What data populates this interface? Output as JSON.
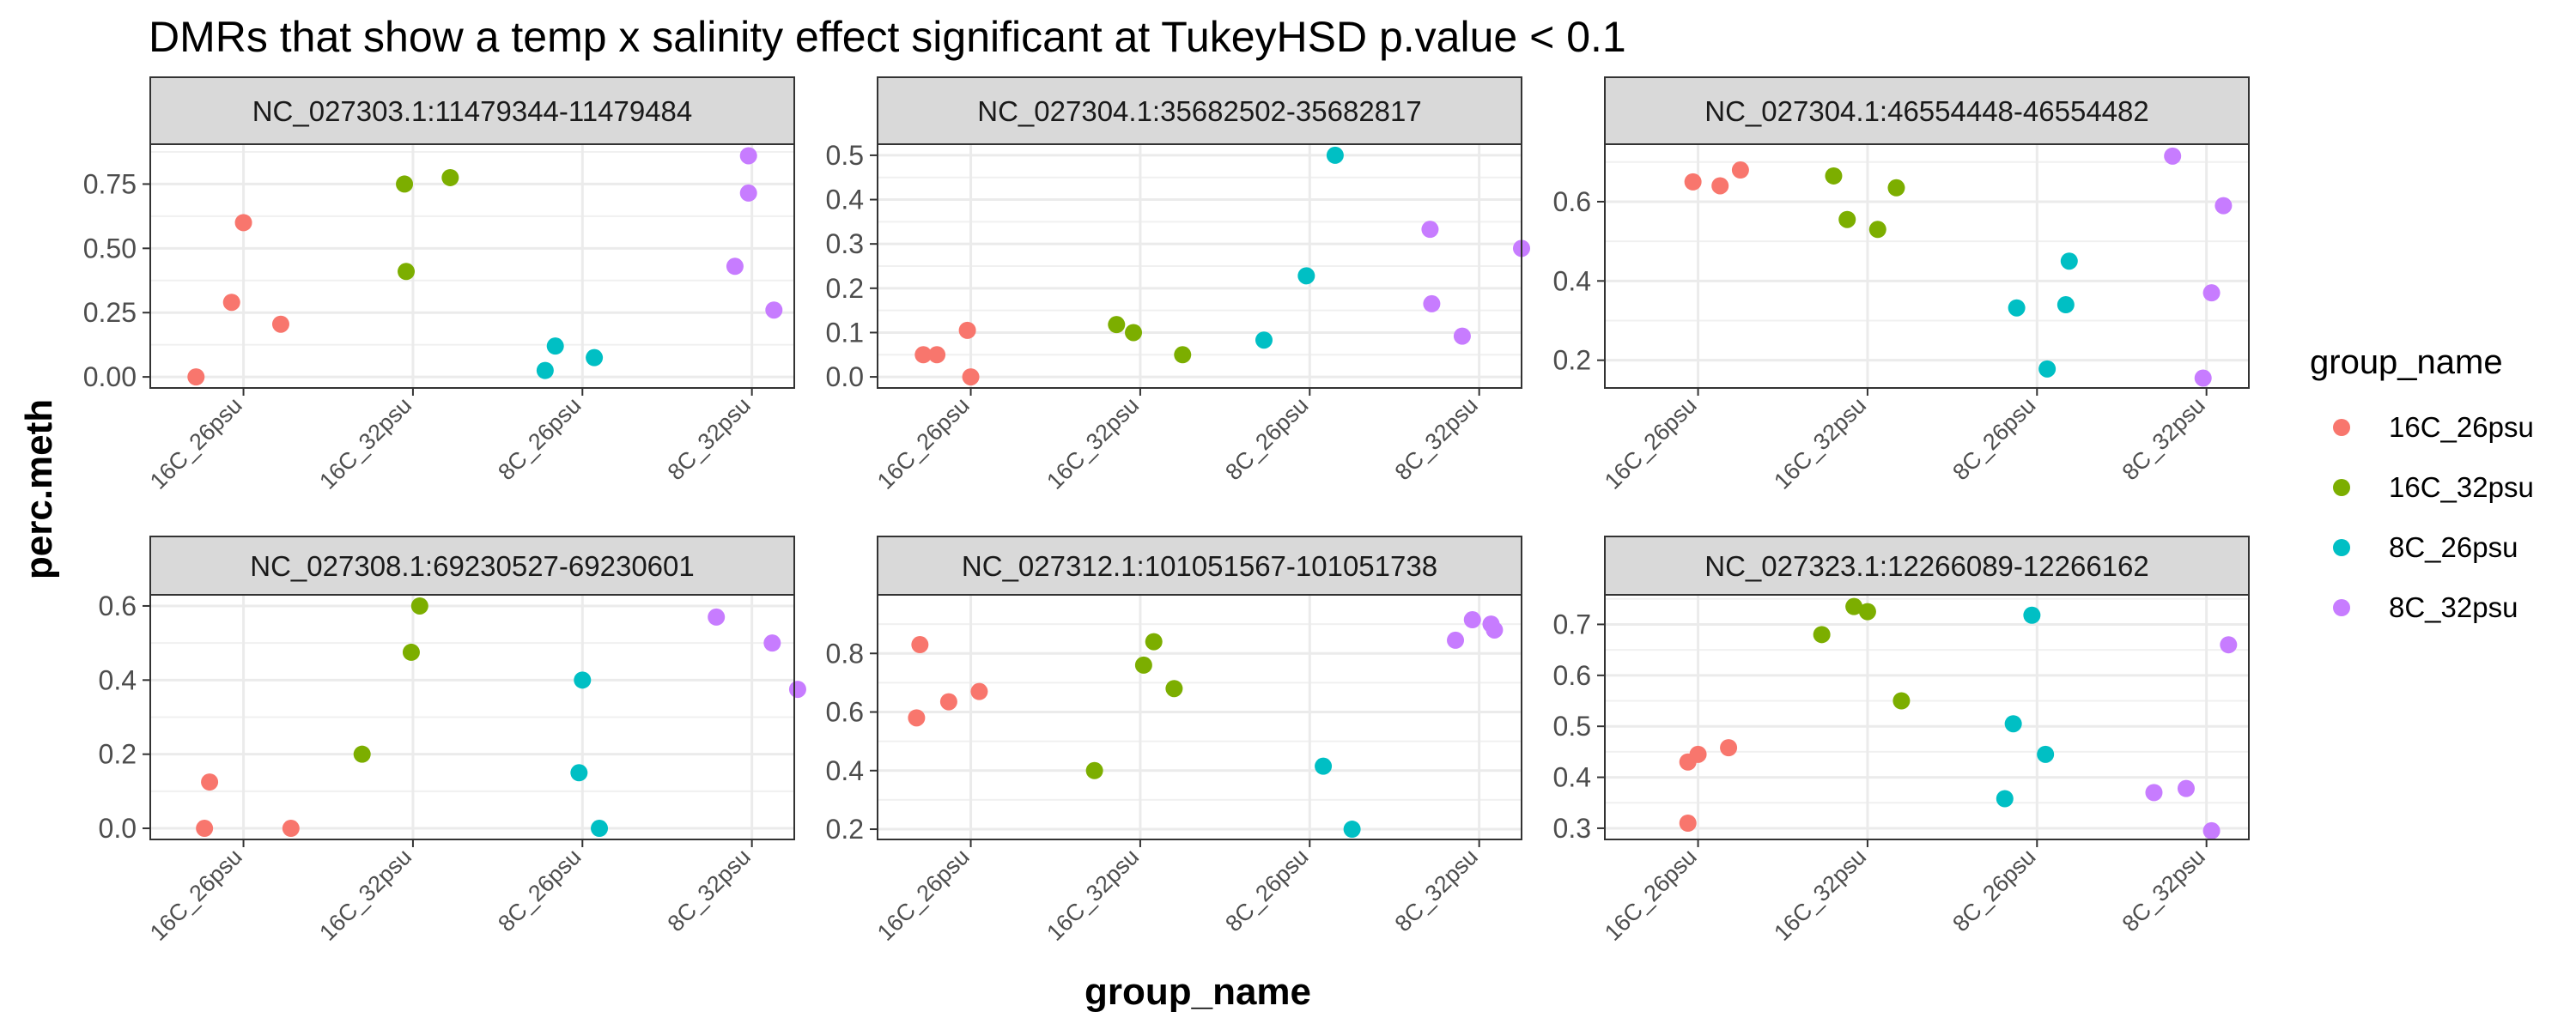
{
  "chart_data": {
    "type": "scatter",
    "title": "DMRs that show a temp x salinity effect significant at TukeyHSD p.value < 0.1",
    "xlabel": "group_name",
    "ylabel": "perc.meth",
    "categories": [
      "16C_26psu",
      "16C_32psu",
      "8C_26psu",
      "8C_32psu"
    ],
    "legend": {
      "title": "group_name",
      "position": "right",
      "entries": [
        {
          "name": "16C_26psu",
          "color": "#F8766D"
        },
        {
          "name": "16C_32psu",
          "color": "#7CAE00"
        },
        {
          "name": "8C_26psu",
          "color": "#00BFC4"
        },
        {
          "name": "8C_32psu",
          "color": "#C77CFF"
        }
      ]
    },
    "panels": [
      {
        "title": "NC_027303.1:11479344-11479484",
        "yticks": [
          "0.00",
          "0.25",
          "0.50",
          "0.75"
        ],
        "ytick_values": [
          0,
          0.25,
          0.5,
          0.75
        ],
        "ylim": [
          -0.043,
          0.905
        ],
        "points": [
          {
            "g": 0,
            "j": -0.28,
            "y": 0.0
          },
          {
            "g": 0,
            "j": -0.07,
            "y": 0.29
          },
          {
            "g": 0,
            "j": 0.0,
            "y": 0.6
          },
          {
            "g": 0,
            "j": 0.22,
            "y": 0.205
          },
          {
            "g": 1,
            "j": -0.04,
            "y": 0.41
          },
          {
            "g": 1,
            "j": -0.05,
            "y": 0.75
          },
          {
            "g": 1,
            "j": 0.22,
            "y": 0.775
          },
          {
            "g": 2,
            "j": -0.22,
            "y": 0.025
          },
          {
            "g": 2,
            "j": -0.16,
            "y": 0.12
          },
          {
            "g": 2,
            "j": 0.07,
            "y": 0.075
          },
          {
            "g": 3,
            "j": -0.1,
            "y": 0.43
          },
          {
            "g": 3,
            "j": -0.02,
            "y": 0.86
          },
          {
            "g": 3,
            "j": -0.02,
            "y": 0.715
          },
          {
            "g": 3,
            "j": 0.13,
            "y": 0.26
          }
        ]
      },
      {
        "title": "NC_027304.1:35682502-35682817",
        "yticks": [
          "0.0",
          "0.1",
          "0.2",
          "0.3",
          "0.4",
          "0.5"
        ],
        "ytick_values": [
          0,
          0.1,
          0.2,
          0.3,
          0.4,
          0.5
        ],
        "ylim": [
          -0.025,
          0.525
        ],
        "points": [
          {
            "g": 0,
            "j": -0.28,
            "y": 0.05
          },
          {
            "g": 0,
            "j": -0.2,
            "y": 0.05
          },
          {
            "g": 0,
            "j": -0.02,
            "y": 0.105
          },
          {
            "g": 0,
            "j": 0.0,
            "y": 0.0
          },
          {
            "g": 1,
            "j": -0.14,
            "y": 0.118
          },
          {
            "g": 1,
            "j": -0.04,
            "y": 0.1
          },
          {
            "g": 1,
            "j": 0.25,
            "y": 0.05
          },
          {
            "g": 2,
            "j": -0.27,
            "y": 0.083
          },
          {
            "g": 2,
            "j": -0.02,
            "y": 0.228
          },
          {
            "g": 2,
            "j": 0.15,
            "y": 0.5
          },
          {
            "g": 3,
            "j": -0.29,
            "y": 0.333
          },
          {
            "g": 3,
            "j": -0.28,
            "y": 0.165
          },
          {
            "g": 3,
            "j": -0.1,
            "y": 0.092
          },
          {
            "g": 3,
            "j": 0.25,
            "y": 0.29
          }
        ]
      },
      {
        "title": "NC_027304.1:46554448-46554482",
        "yticks": [
          "0.2",
          "0.4",
          "0.6"
        ],
        "ytick_values": [
          0.2,
          0.4,
          0.6
        ],
        "ylim": [
          0.13,
          0.745
        ],
        "points": [
          {
            "g": 0,
            "j": -0.03,
            "y": 0.65
          },
          {
            "g": 0,
            "j": 0.13,
            "y": 0.64
          },
          {
            "g": 0,
            "j": 0.25,
            "y": 0.68
          },
          {
            "g": 1,
            "j": -0.2,
            "y": 0.665
          },
          {
            "g": 1,
            "j": -0.12,
            "y": 0.555
          },
          {
            "g": 1,
            "j": 0.06,
            "y": 0.53
          },
          {
            "g": 1,
            "j": 0.17,
            "y": 0.635
          },
          {
            "g": 2,
            "j": -0.12,
            "y": 0.332
          },
          {
            "g": 2,
            "j": 0.06,
            "y": 0.178
          },
          {
            "g": 2,
            "j": 0.17,
            "y": 0.34
          },
          {
            "g": 2,
            "j": 0.19,
            "y": 0.45
          },
          {
            "g": 3,
            "j": -0.2,
            "y": 0.715
          },
          {
            "g": 3,
            "j": -0.02,
            "y": 0.155
          },
          {
            "g": 3,
            "j": 0.03,
            "y": 0.37
          },
          {
            "g": 3,
            "j": 0.1,
            "y": 0.59
          }
        ]
      },
      {
        "title": "NC_027308.1:69230527-69230601",
        "yticks": [
          "0.0",
          "0.2",
          "0.4",
          "0.6"
        ],
        "ytick_values": [
          0,
          0.2,
          0.4,
          0.6
        ],
        "ylim": [
          -0.03,
          0.63
        ],
        "points": [
          {
            "g": 0,
            "j": -0.23,
            "y": 0.0
          },
          {
            "g": 0,
            "j": -0.2,
            "y": 0.125
          },
          {
            "g": 0,
            "j": 0.28,
            "y": 0.0
          },
          {
            "g": 1,
            "j": -0.3,
            "y": 0.2
          },
          {
            "g": 1,
            "j": -0.01,
            "y": 0.475
          },
          {
            "g": 1,
            "j": 0.04,
            "y": 0.6
          },
          {
            "g": 2,
            "j": 0.0,
            "y": 0.4
          },
          {
            "g": 2,
            "j": -0.02,
            "y": 0.15
          },
          {
            "g": 2,
            "j": 0.1,
            "y": 0.0
          },
          {
            "g": 3,
            "j": -0.21,
            "y": 0.57
          },
          {
            "g": 3,
            "j": 0.12,
            "y": 0.5
          },
          {
            "g": 3,
            "j": 0.27,
            "y": 0.375
          }
        ]
      },
      {
        "title": "NC_027312.1:101051567-101051738",
        "yticks": [
          "0.2",
          "0.4",
          "0.6",
          "0.8"
        ],
        "ytick_values": [
          0.2,
          0.4,
          0.6,
          0.8
        ],
        "ylim": [
          0.165,
          1.0
        ],
        "points": [
          {
            "g": 0,
            "j": -0.32,
            "y": 0.58
          },
          {
            "g": 0,
            "j": -0.3,
            "y": 0.83
          },
          {
            "g": 0,
            "j": -0.13,
            "y": 0.635
          },
          {
            "g": 0,
            "j": 0.05,
            "y": 0.67
          },
          {
            "g": 1,
            "j": -0.27,
            "y": 0.4
          },
          {
            "g": 1,
            "j": 0.02,
            "y": 0.76
          },
          {
            "g": 1,
            "j": 0.08,
            "y": 0.84
          },
          {
            "g": 1,
            "j": 0.2,
            "y": 0.68
          },
          {
            "g": 2,
            "j": 0.08,
            "y": 0.415
          },
          {
            "g": 2,
            "j": 0.25,
            "y": 0.2
          },
          {
            "g": 3,
            "j": -0.14,
            "y": 0.845
          },
          {
            "g": 3,
            "j": -0.04,
            "y": 0.915
          },
          {
            "g": 3,
            "j": 0.07,
            "y": 0.9
          },
          {
            "g": 3,
            "j": 0.09,
            "y": 0.88
          }
        ]
      },
      {
        "title": "NC_027323.1:12266089-12266162",
        "yticks": [
          "0.3",
          "0.4",
          "0.5",
          "0.6",
          "0.7"
        ],
        "ytick_values": [
          0.3,
          0.4,
          0.5,
          0.6,
          0.7
        ],
        "ylim": [
          0.278,
          0.758
        ],
        "points": [
          {
            "g": 0,
            "j": -0.06,
            "y": 0.31
          },
          {
            "g": 0,
            "j": -0.06,
            "y": 0.43
          },
          {
            "g": 0,
            "j": 0.0,
            "y": 0.445
          },
          {
            "g": 0,
            "j": 0.18,
            "y": 0.458
          },
          {
            "g": 1,
            "j": -0.27,
            "y": 0.68
          },
          {
            "g": 1,
            "j": -0.08,
            "y": 0.735
          },
          {
            "g": 1,
            "j": 0.0,
            "y": 0.725
          },
          {
            "g": 1,
            "j": 0.2,
            "y": 0.55
          },
          {
            "g": 2,
            "j": -0.19,
            "y": 0.358
          },
          {
            "g": 2,
            "j": -0.14,
            "y": 0.505
          },
          {
            "g": 2,
            "j": -0.03,
            "y": 0.718
          },
          {
            "g": 2,
            "j": 0.05,
            "y": 0.445
          },
          {
            "g": 3,
            "j": -0.31,
            "y": 0.37
          },
          {
            "g": 3,
            "j": -0.12,
            "y": 0.378
          },
          {
            "g": 3,
            "j": 0.03,
            "y": 0.295
          },
          {
            "g": 3,
            "j": 0.13,
            "y": 0.66
          }
        ]
      }
    ]
  }
}
